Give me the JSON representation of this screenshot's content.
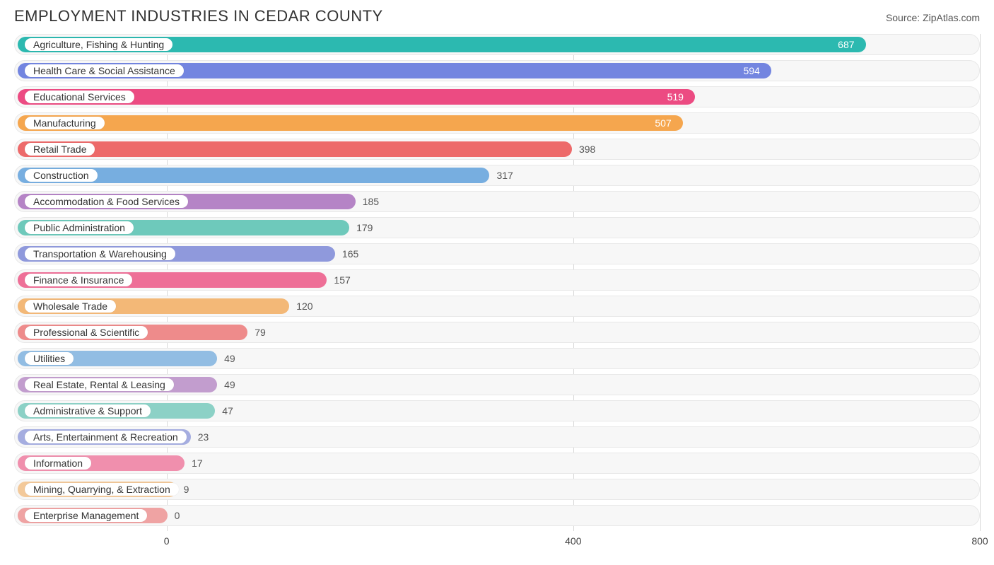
{
  "title": "EMPLOYMENT INDUSTRIES IN CEDAR COUNTY",
  "source": "Source: ZipAtlas.com",
  "chart": {
    "type": "horizontal-bar",
    "background_color": "#ffffff",
    "row_bg_color": "#f7f7f7",
    "row_border_color": "#e8e8e8",
    "grid_color": "#d8d8d8",
    "label_fontsize": 14,
    "title_fontsize": 22,
    "x_axis": {
      "min": -150,
      "max": 800,
      "ticks": [
        0,
        400,
        800
      ],
      "tick_labels": [
        "0",
        "400",
        "800"
      ]
    },
    "label_origin_value": -150,
    "bars": [
      {
        "label": "Agriculture, Fishing & Hunting",
        "value": 687,
        "color": "#2cb9b0",
        "value_color": "#ffffff",
        "value_inside": true
      },
      {
        "label": "Health Care & Social Assistance",
        "value": 594,
        "color": "#7385e0",
        "value_color": "#ffffff",
        "value_inside": true
      },
      {
        "label": "Educational Services",
        "value": 519,
        "color": "#ec4b82",
        "value_color": "#ffffff",
        "value_inside": true
      },
      {
        "label": "Manufacturing",
        "value": 507,
        "color": "#f5a64e",
        "value_color": "#ffffff",
        "value_inside": true
      },
      {
        "label": "Retail Trade",
        "value": 398,
        "color": "#ed6a6a",
        "value_color": "#555555",
        "value_inside": false
      },
      {
        "label": "Construction",
        "value": 317,
        "color": "#77aee0",
        "value_color": "#555555",
        "value_inside": false
      },
      {
        "label": "Accommodation & Food Services",
        "value": 185,
        "color": "#b584c6",
        "value_color": "#555555",
        "value_inside": false
      },
      {
        "label": "Public Administration",
        "value": 179,
        "color": "#6ec9bb",
        "value_color": "#555555",
        "value_inside": false
      },
      {
        "label": "Transportation & Warehousing",
        "value": 165,
        "color": "#8f99dc",
        "value_color": "#555555",
        "value_inside": false
      },
      {
        "label": "Finance & Insurance",
        "value": 157,
        "color": "#ee6f97",
        "value_color": "#555555",
        "value_inside": false
      },
      {
        "label": "Wholesale Trade",
        "value": 120,
        "color": "#f3b877",
        "value_color": "#555555",
        "value_inside": false
      },
      {
        "label": "Professional & Scientific",
        "value": 79,
        "color": "#ee8b8b",
        "value_color": "#555555",
        "value_inside": false
      },
      {
        "label": "Utilities",
        "value": 49,
        "color": "#92bde3",
        "value_color": "#555555",
        "value_inside": false
      },
      {
        "label": "Real Estate, Rental & Leasing",
        "value": 49,
        "color": "#c29dce",
        "value_color": "#555555",
        "value_inside": false
      },
      {
        "label": "Administrative & Support",
        "value": 47,
        "color": "#8cd1c6",
        "value_color": "#555555",
        "value_inside": false
      },
      {
        "label": "Arts, Entertainment & Recreation",
        "value": 23,
        "color": "#a5ade0",
        "value_color": "#555555",
        "value_inside": false
      },
      {
        "label": "Information",
        "value": 17,
        "color": "#f08fad",
        "value_color": "#555555",
        "value_inside": false
      },
      {
        "label": "Mining, Quarrying, & Extraction",
        "value": 9,
        "color": "#f3c99a",
        "value_color": "#555555",
        "value_inside": false
      },
      {
        "label": "Enterprise Management",
        "value": 0,
        "color": "#efa3a3",
        "value_color": "#555555",
        "value_inside": false
      }
    ]
  }
}
